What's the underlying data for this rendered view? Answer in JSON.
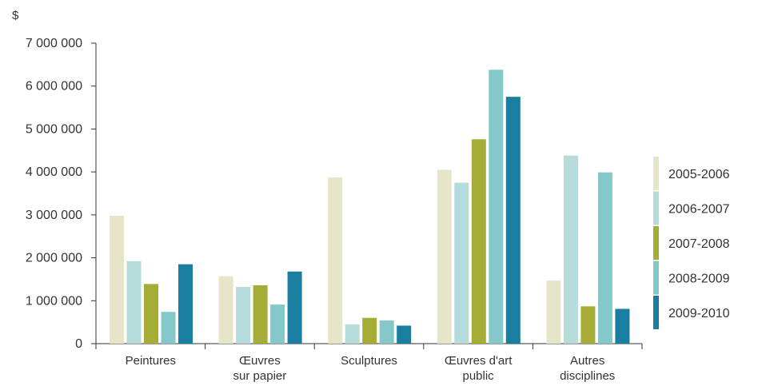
{
  "chart_data": {
    "type": "bar",
    "unit_label": "$",
    "categories": [
      [
        "Peintures"
      ],
      [
        "Œuvres",
        "sur papier"
      ],
      [
        "Sculptures"
      ],
      [
        "Œuvres d'art",
        "public"
      ],
      [
        "Autres",
        "disciplines"
      ]
    ],
    "series": [
      {
        "name": "2005-2006",
        "color": "#e6e5c9",
        "values": [
          2980000,
          1570000,
          3870000,
          4050000,
          1470000
        ]
      },
      {
        "name": "2006-2007",
        "color": "#b5dbdb",
        "values": [
          1920000,
          1320000,
          450000,
          3750000,
          4380000
        ]
      },
      {
        "name": "2007-2008",
        "color": "#a6ad36",
        "values": [
          1390000,
          1360000,
          600000,
          4760000,
          870000
        ]
      },
      {
        "name": "2008-2009",
        "color": "#85c8c9",
        "values": [
          740000,
          910000,
          540000,
          6380000,
          3990000
        ]
      },
      {
        "name": "2009-2010",
        "color": "#197ea0",
        "values": [
          1850000,
          1680000,
          420000,
          5750000,
          810000
        ]
      }
    ],
    "yticks": [
      "0",
      "1 000 000",
      "2 000 000",
      "3 000 000",
      "4 000 000",
      "5 000 000",
      "6 000 000",
      "7 000 000"
    ],
    "ylim": [
      0,
      7000000
    ],
    "legend_position": "right",
    "grid": false
  }
}
